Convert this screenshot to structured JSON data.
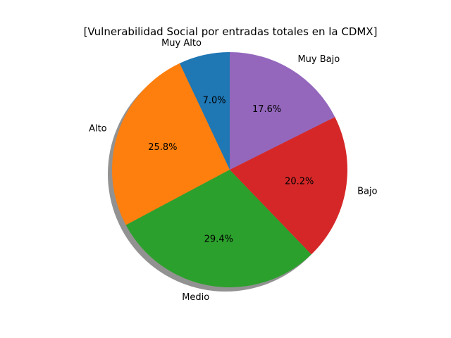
{
  "chart_data": {
    "type": "pie",
    "title": "[Vulnerabilidad Social por entradas totales en la CDMX]",
    "categories": [
      "Muy Alto",
      "Alto",
      "Medio",
      "Bajo",
      "Muy Bajo"
    ],
    "values": [
      7.0,
      25.8,
      29.4,
      20.2,
      17.6
    ],
    "value_labels": [
      "7.0%",
      "25.8%",
      "29.4%",
      "20.2%",
      "17.6%"
    ],
    "colors": [
      "#1f77b4",
      "#ff7f0e",
      "#2ca02c",
      "#d62728",
      "#9467bd"
    ],
    "start_angle_deg": 90,
    "direction": "counterclockwise",
    "shadow": true,
    "legend": "none"
  }
}
